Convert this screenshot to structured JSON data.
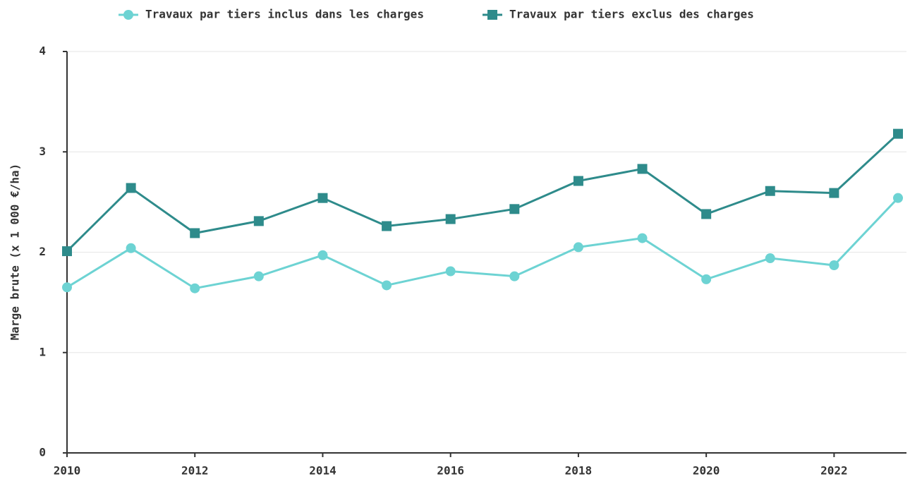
{
  "chart_data": {
    "type": "line",
    "y_label": "Marge brute (x 1 000 €/ha)",
    "x": [
      2010,
      2011,
      2012,
      2013,
      2014,
      2015,
      2016,
      2017,
      2018,
      2019,
      2020,
      2021,
      2022,
      2023
    ],
    "series": [
      {
        "name": "Travaux par tiers inclus dans les charges",
        "color": "#6dd3d3",
        "marker": "circle",
        "values": [
          1.65,
          2.04,
          1.64,
          1.76,
          1.97,
          1.67,
          1.81,
          1.76,
          2.05,
          2.14,
          1.73,
          1.94,
          1.87,
          2.54
        ]
      },
      {
        "name": "Travaux par tiers exclus des charges",
        "color": "#2e8b8b",
        "marker": "square",
        "values": [
          2.01,
          2.64,
          2.19,
          2.31,
          2.54,
          2.26,
          2.33,
          2.43,
          2.71,
          2.83,
          2.38,
          2.61,
          2.59,
          3.18
        ]
      }
    ],
    "xlim": [
      2010,
      2023
    ],
    "xticks": [
      2010,
      2012,
      2014,
      2016,
      2018,
      2020,
      2022
    ],
    "ylim": [
      0,
      4
    ],
    "yticks": [
      0,
      1,
      2,
      3,
      4
    ],
    "grid": true,
    "legend": "top"
  }
}
